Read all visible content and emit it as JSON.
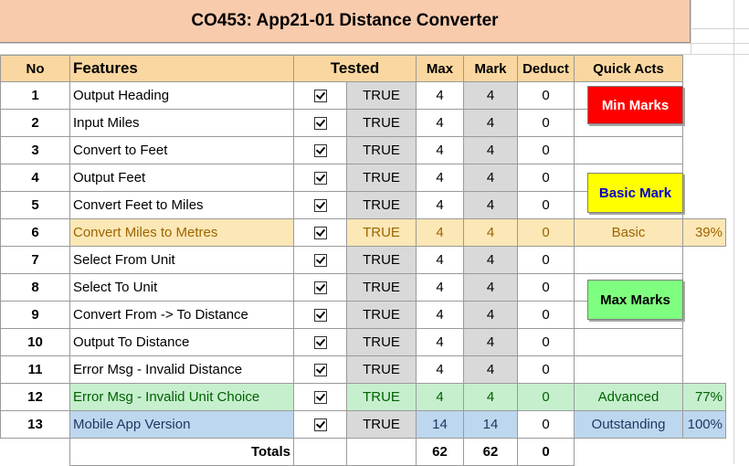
{
  "title": "CO453: App21-01 Distance Converter",
  "headers": {
    "no": "No",
    "features": "Features",
    "tested": "Tested",
    "max": "Max",
    "mark": "Mark",
    "deduct": "Deduct",
    "quick_acts": "Quick Acts"
  },
  "rows": [
    {
      "no": "1",
      "feature": "Output Heading",
      "tested": "TRUE",
      "max": "4",
      "mark": "4",
      "deduct": "0"
    },
    {
      "no": "2",
      "feature": "Input Miles",
      "tested": "TRUE",
      "max": "4",
      "mark": "4",
      "deduct": "0"
    },
    {
      "no": "3",
      "feature": "Convert to Feet",
      "tested": "TRUE",
      "max": "4",
      "mark": "4",
      "deduct": "0"
    },
    {
      "no": "4",
      "feature": "Output Feet",
      "tested": "TRUE",
      "max": "4",
      "mark": "4",
      "deduct": "0"
    },
    {
      "no": "5",
      "feature": "Convert Feet to Miles",
      "tested": "TRUE",
      "max": "4",
      "mark": "4",
      "deduct": "0"
    },
    {
      "no": "6",
      "feature": "Convert Miles to Metres",
      "tested": "TRUE",
      "max": "4",
      "mark": "4",
      "deduct": "0"
    },
    {
      "no": "7",
      "feature": "Select From Unit",
      "tested": "TRUE",
      "max": "4",
      "mark": "4",
      "deduct": "0"
    },
    {
      "no": "8",
      "feature": "Select To Unit",
      "tested": "TRUE",
      "max": "4",
      "mark": "4",
      "deduct": "0"
    },
    {
      "no": "9",
      "feature": "Convert From -> To Distance",
      "tested": "TRUE",
      "max": "4",
      "mark": "4",
      "deduct": "0"
    },
    {
      "no": "10",
      "feature": "Output To Distance",
      "tested": "TRUE",
      "max": "4",
      "mark": "4",
      "deduct": "0"
    },
    {
      "no": "11",
      "feature": "Error Msg - Invalid Distance",
      "tested": "TRUE",
      "max": "4",
      "mark": "4",
      "deduct": "0"
    },
    {
      "no": "12",
      "feature": "Error Msg - Invalid Unit Choice",
      "tested": "TRUE",
      "max": "4",
      "mark": "4",
      "deduct": "0"
    },
    {
      "no": "13",
      "feature": "Mobile App Version",
      "tested": "TRUE",
      "max": "14",
      "mark": "14",
      "deduct": "0"
    }
  ],
  "levels": {
    "basic": {
      "label": "Basic",
      "pct": "39%"
    },
    "advanced": {
      "label": "Advanced",
      "pct": "77%"
    },
    "outstanding": {
      "label": "Outstanding",
      "pct": "100%"
    }
  },
  "totals": {
    "label": "Totals",
    "max": "62",
    "mark": "62",
    "deduct": "0"
  },
  "buttons": {
    "min": "Min Marks",
    "basic": "Basic Mark",
    "max": "Max Marks"
  },
  "colors": {
    "title_bg": "#f8cbad",
    "header_bg": "#fad7a0",
    "basic_bg": "#fce7b6",
    "advanced_bg": "#c6efce",
    "outstanding_bg": "#bdd7ee",
    "min_button": "#ff0000",
    "basic_button": "#ffff00",
    "max_button": "#7fff7f"
  },
  "icons": {
    "checkbox": "checkbox-checked-icon"
  }
}
